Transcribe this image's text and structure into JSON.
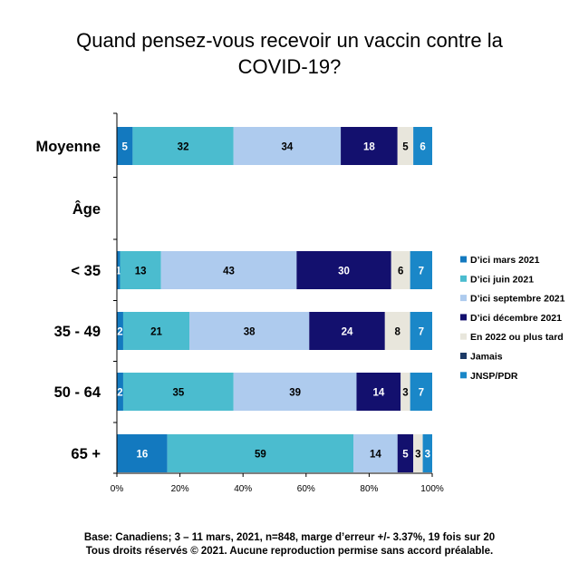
{
  "title_lines": [
    "Quand pensez-vous recevoir un vaccin contre la",
    "COVID-19?"
  ],
  "footnote_lines": [
    "Base: Canadiens; 3 – 11 mars, 2021, n=848, marge d’erreur +/- 3.37%, 19 fois sur 20",
    "Tous droits réservés © 2021. Aucune reproduction permise sans accord préalable."
  ],
  "colors": {
    "D'ici mars 2021": "#1379BF",
    "D'ici juin 2021": "#4BBCCF",
    "D'ici septembre 2021": "#AECBEE",
    "D'ici décembre 2021": "#13106E",
    "En 2022 ou plus tard": "#E8E6DC",
    "Jamais": "#1D3A66",
    "JNSP/PDR": "#1A87C8"
  },
  "chart_data": {
    "type": "bar",
    "orientation": "horizontal",
    "stacked": true,
    "categories": [
      "Moyenne",
      "Âge",
      "< 35",
      "35 - 49",
      "50 - 64",
      "65 +"
    ],
    "series": [
      {
        "name": "D’ici mars 2021",
        "values": [
          5,
          null,
          1,
          2,
          2,
          16
        ]
      },
      {
        "name": "D’ici juin 2021",
        "values": [
          32,
          null,
          13,
          21,
          35,
          59
        ]
      },
      {
        "name": "D’ici septembre 2021",
        "values": [
          34,
          null,
          43,
          38,
          39,
          14
        ]
      },
      {
        "name": "D’ici décembre 2021",
        "values": [
          18,
          null,
          30,
          24,
          14,
          5
        ]
      },
      {
        "name": "En 2022 ou plus tard",
        "values": [
          5,
          null,
          6,
          8,
          3,
          3
        ]
      },
      {
        "name": "Jamais",
        "values": [
          0,
          null,
          0,
          0,
          0,
          0
        ]
      },
      {
        "name": "JNSP/PDR",
        "values": [
          6,
          null,
          7,
          7,
          7,
          3
        ]
      }
    ],
    "label_colors": [
      "#ffffff",
      "#000000",
      "#000000",
      "#ffffff",
      "#000000",
      "#ffffff",
      "#ffffff"
    ],
    "xlim": [
      0,
      100
    ],
    "x_ticks": [
      "0%",
      "20%",
      "40%",
      "60%",
      "80%",
      "100%"
    ],
    "legend_position": "right",
    "grid": false
  }
}
